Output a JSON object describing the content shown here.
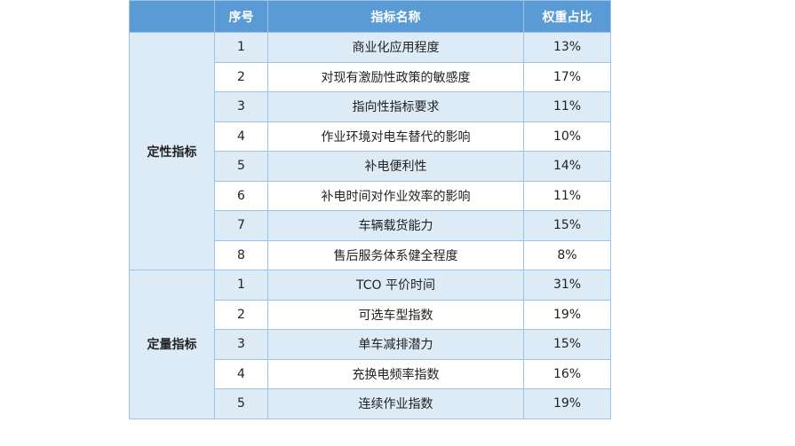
{
  "table": {
    "headers": [
      "",
      "序号",
      "指标名称",
      "权重占比"
    ],
    "groups": [
      {
        "name": "定性指标",
        "rows": [
          {
            "no": "1",
            "name": "商业化应用程度",
            "weight": "13%"
          },
          {
            "no": "2",
            "name": "对现有激励性政策的敏感度",
            "weight": "17%"
          },
          {
            "no": "3",
            "name": "指向性指标要求",
            "weight": "11%"
          },
          {
            "no": "4",
            "name": "作业环境对电车替代的影响",
            "weight": "10%"
          },
          {
            "no": "5",
            "name": "补电便利性",
            "weight": "14%"
          },
          {
            "no": "6",
            "name": "补电时间对作业效率的影响",
            "weight": "11%"
          },
          {
            "no": "7",
            "name": "车辆载货能力",
            "weight": "15%"
          },
          {
            "no": "8",
            "name": "售后服务体系健全程度",
            "weight": "8%"
          }
        ]
      },
      {
        "name": "定量指标",
        "rows": [
          {
            "no": "1",
            "name": "TCO 平价时间",
            "weight": "31%"
          },
          {
            "no": "2",
            "name": "可选车型指数",
            "weight": "19%"
          },
          {
            "no": "3",
            "name": "单车减排潜力",
            "weight": "15%"
          },
          {
            "no": "4",
            "name": "充换电频率指数",
            "weight": "16%"
          },
          {
            "no": "5",
            "name": "连续作业指数",
            "weight": "19%"
          }
        ]
      }
    ]
  }
}
